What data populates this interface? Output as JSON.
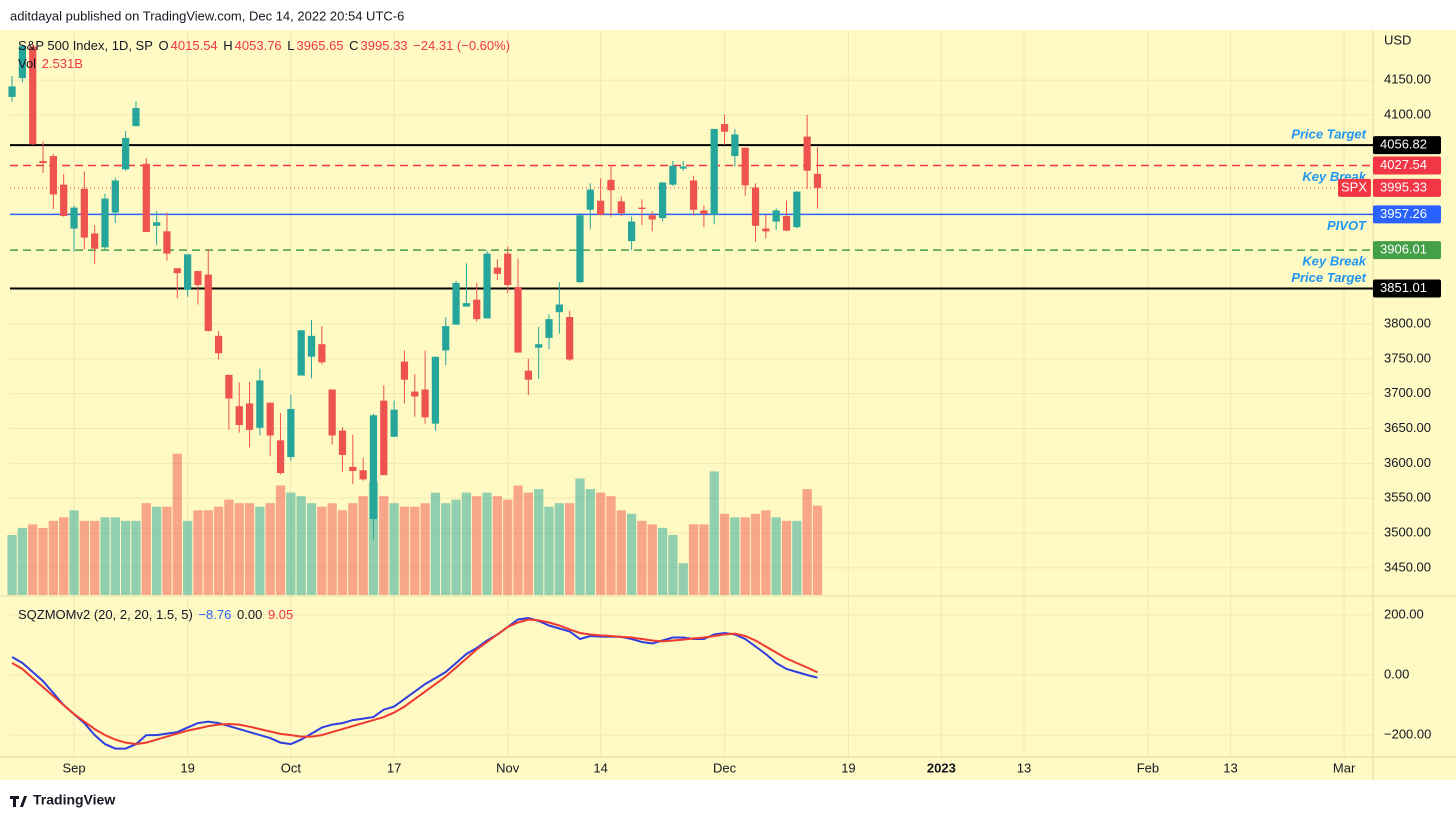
{
  "header": {
    "published_by": "aditdayal published on TradingView.com, Dec 14, 2022 20:54 UTC-6"
  },
  "footer": {
    "brand": "TradingView"
  },
  "chart_data": {
    "type": "candlestick",
    "title": "S&P 500 Index, 1D, SP",
    "ohlc_letters": [
      "O",
      "H",
      "L",
      "C"
    ],
    "change": "−24.31 (−0.60%)",
    "volume_title": "Vol",
    "volume_label": "2.531B",
    "currency": "USD",
    "up_color": "#26a69a",
    "down_color": "#ef5350",
    "open": [
      4126,
      4153,
      4198,
      4034,
      4041,
      4000,
      3937,
      3994,
      3930,
      3910,
      3960,
      4022,
      4084,
      4030,
      3941,
      3933,
      3880,
      3849,
      3876,
      3871,
      3783,
      3727,
      3682,
      3686,
      3651,
      3687,
      3633,
      3609,
      3726,
      3753,
      3771,
      3706,
      3647,
      3595,
      3590,
      3520,
      3690,
      3638,
      3746,
      3703,
      3706,
      3657,
      3762,
      3799,
      3825,
      3835,
      3808,
      3881,
      3901,
      3853,
      3733,
      3766,
      3780,
      3817,
      3810,
      3860,
      3964,
      3977,
      4007,
      3976,
      3919,
      3967,
      3956,
      3952,
      4000,
      4023,
      4006,
      3963,
      3957,
      4087,
      4041,
      4053,
      3996,
      3937,
      3947,
      3955,
      3939,
      4069,
      4015.54
    ],
    "high": [
      4156,
      4200,
      4203,
      4062,
      4044,
      4015,
      3970,
      4019,
      3942,
      3987,
      4010,
      4077,
      4120,
      4038,
      3962,
      3960,
      3880,
      3900,
      3876,
      3907,
      3790,
      3727,
      3716,
      3717,
      3736,
      3687,
      3672,
      3698,
      3790,
      3806,
      3797,
      3706,
      3652,
      3641,
      3608,
      3671,
      3712,
      3690,
      3762,
      3728,
      3762,
      3753,
      3810,
      3862,
      3887,
      3859,
      3905,
      3893,
      3911,
      3894,
      3750,
      3796,
      3814,
      3860,
      3819,
      3959,
      4002,
      4009,
      4028,
      3983,
      3954,
      3979,
      3962,
      4004,
      4034,
      4034,
      4013,
      3970,
      4080,
      4101,
      4080,
      4053,
      4002,
      3957,
      3966,
      3977,
      3991,
      4100,
      4053.76
    ],
    "low": [
      4119,
      4147,
      4057,
      4017,
      3965,
      3954,
      3904,
      3907,
      3886,
      3907,
      3945,
      4020,
      4084,
      3932,
      3913,
      3891,
      3837,
      3839,
      3828,
      3789,
      3749,
      3648,
      3644,
      3623,
      3640,
      3610,
      3584,
      3604,
      3726,
      3722,
      3742,
      3627,
      3588,
      3570,
      3575,
      3491,
      3584,
      3638,
      3686,
      3667,
      3657,
      3647,
      3741,
      3799,
      3825,
      3803,
      3808,
      3863,
      3844,
      3759,
      3698,
      3721,
      3764,
      3786,
      3747,
      3859,
      3936,
      3956,
      3954,
      3955,
      3906,
      3942,
      3933,
      3947,
      3998,
      4020,
      3956,
      3939,
      3943,
      4057,
      4026,
      3984,
      3918,
      3923,
      3935,
      3933,
      3937,
      3994,
      3965.65
    ],
    "close": [
      4141,
      4199,
      4058,
      4031,
      3986,
      3955,
      3967,
      3924,
      3908,
      3980,
      4006,
      4067,
      4110,
      3932,
      3946,
      3901,
      3873,
      3900,
      3856,
      3790,
      3758,
      3693,
      3655,
      3648,
      3719,
      3640,
      3586,
      3678,
      3791,
      3783,
      3745,
      3640,
      3612,
      3589,
      3577,
      3669,
      3583,
      3677,
      3720,
      3696,
      3666,
      3753,
      3797,
      3859,
      3830,
      3807,
      3901,
      3872,
      3856,
      3759,
      3720,
      3771,
      3807,
      3828,
      3749,
      3956,
      3993,
      3957,
      3992,
      3959,
      3947,
      3965,
      3950,
      4003,
      4027,
      4026,
      3964,
      3958,
      4080,
      4076,
      4072,
      3999,
      3941,
      3933,
      3963,
      3934,
      3990,
      4020,
      3995.33
    ],
    "volume": [
      1.7,
      1.9,
      2.0,
      1.9,
      2.1,
      2.2,
      2.4,
      2.1,
      2.1,
      2.2,
      2.2,
      2.1,
      2.1,
      2.6,
      2.5,
      2.5,
      4.0,
      2.1,
      2.4,
      2.4,
      2.5,
      2.7,
      2.6,
      2.6,
      2.5,
      2.6,
      3.1,
      2.9,
      2.8,
      2.6,
      2.5,
      2.6,
      2.4,
      2.6,
      2.8,
      3.2,
      2.8,
      2.6,
      2.5,
      2.5,
      2.6,
      2.9,
      2.6,
      2.7,
      2.9,
      2.8,
      2.9,
      2.8,
      2.7,
      3.1,
      2.9,
      3.0,
      2.5,
      2.6,
      2.6,
      3.3,
      3.0,
      2.9,
      2.8,
      2.4,
      2.3,
      2.1,
      2.0,
      1.9,
      1.7,
      0.9,
      2.0,
      2.0,
      3.5,
      2.3,
      2.2,
      2.2,
      2.3,
      2.4,
      2.2,
      2.1,
      2.1,
      3.0,
      2.531
    ],
    "volume_lim": [
      0,
      16
    ],
    "xlim": [
      -0.2,
      131.8
    ],
    "xticks": [
      {
        "value": 6,
        "label": "Sep"
      },
      {
        "value": 17,
        "label": "19"
      },
      {
        "value": 27,
        "label": "Oct"
      },
      {
        "value": 37,
        "label": "17"
      },
      {
        "value": 48,
        "label": "Nov"
      },
      {
        "value": 57,
        "label": "14"
      },
      {
        "value": 69,
        "label": "Dec"
      },
      {
        "value": 81,
        "label": "19"
      },
      {
        "value": 90,
        "label": "2023"
      },
      {
        "value": 98,
        "label": "13"
      },
      {
        "value": 110,
        "label": "Feb"
      },
      {
        "value": 118,
        "label": "13"
      },
      {
        "value": 129,
        "label": "Mar"
      }
    ],
    "ylim": [
      3411,
      4222
    ],
    "yticks": [
      {
        "value": 4150,
        "label": "4150.00"
      },
      {
        "value": 4100,
        "label": "4100.00"
      },
      {
        "value": 3800,
        "label": "3800.00"
      },
      {
        "value": 3750,
        "label": "3750.00"
      },
      {
        "value": 3700,
        "label": "3700.00"
      },
      {
        "value": 3650,
        "label": "3650.00"
      },
      {
        "value": 3600,
        "label": "3600.00"
      },
      {
        "value": 3550,
        "label": "3550.00"
      },
      {
        "value": 3500,
        "label": "3500.00"
      },
      {
        "value": 3450,
        "label": "3450.00"
      }
    ],
    "grid": true,
    "levels": [
      {
        "value": 4056.82,
        "color": "#000000",
        "style": "solid",
        "label": "Price Target",
        "label_pos": "above"
      },
      {
        "value": 4027.54,
        "color": "#f23645",
        "style": "dashed",
        "label": "Key Break",
        "label_pos": "below"
      },
      {
        "value": 3957.26,
        "color": "#2962ff",
        "style": "solid",
        "label": "PIVOT",
        "label_pos": "below"
      },
      {
        "value": 3906.01,
        "color": "#43a047",
        "style": "dashed",
        "label": "Key Break",
        "label_pos": "below"
      },
      {
        "value": 3851.01,
        "color": "#000000",
        "style": "solid",
        "label": "Price Target",
        "label_pos": "above"
      }
    ],
    "last_price": {
      "symbol": "SPX",
      "value": 3995.33,
      "color": "#f23645"
    },
    "indicator": {
      "name": "SQZMOMv2 (20, 2, 20, 1.5, 5)",
      "legend_values": [
        "−8.76",
        "0.00",
        "9.05"
      ],
      "ylim": [
        -273,
        260
      ],
      "yticks": [
        {
          "value": 200,
          "label": "200.00"
        },
        {
          "value": 0,
          "label": "0.00"
        },
        {
          "value": -200,
          "label": "−200.00"
        }
      ],
      "series": [
        {
          "color": "#2f3ee0",
          "values": [
            60,
            40,
            10,
            -20,
            -60,
            -100,
            -130,
            -160,
            -200,
            -230,
            -245,
            -245,
            -230,
            -200,
            -200,
            -195,
            -190,
            -175,
            -160,
            -155,
            -160,
            -170,
            -180,
            -190,
            -200,
            -210,
            -225,
            -230,
            -215,
            -195,
            -175,
            -165,
            -160,
            -150,
            -145,
            -140,
            -115,
            -105,
            -80,
            -55,
            -30,
            -10,
            10,
            40,
            70,
            90,
            115,
            135,
            160,
            185,
            190,
            180,
            165,
            155,
            145,
            120,
            130,
            128,
            128,
            127,
            120,
            110,
            105,
            115,
            125,
            125,
            120,
            120,
            135,
            140,
            135,
            120,
            95,
            70,
            40,
            20,
            10,
            0,
            -8.76
          ]
        },
        {
          "color": "#f03a2e",
          "values": [
            40,
            20,
            -10,
            -40,
            -70,
            -100,
            -130,
            -155,
            -180,
            -200,
            -215,
            -225,
            -230,
            -225,
            -215,
            -205,
            -195,
            -185,
            -178,
            -170,
            -165,
            -163,
            -165,
            -172,
            -180,
            -188,
            -196,
            -200,
            -205,
            -205,
            -200,
            -190,
            -180,
            -170,
            -160,
            -150,
            -140,
            -125,
            -105,
            -80,
            -55,
            -30,
            -5,
            25,
            55,
            85,
            110,
            135,
            160,
            175,
            185,
            182,
            175,
            165,
            152,
            140,
            135,
            132,
            130,
            127,
            125,
            120,
            115,
            112,
            115,
            118,
            122,
            125,
            130,
            135,
            138,
            130,
            115,
            95,
            75,
            55,
            40,
            25,
            9.05
          ]
        }
      ]
    }
  }
}
